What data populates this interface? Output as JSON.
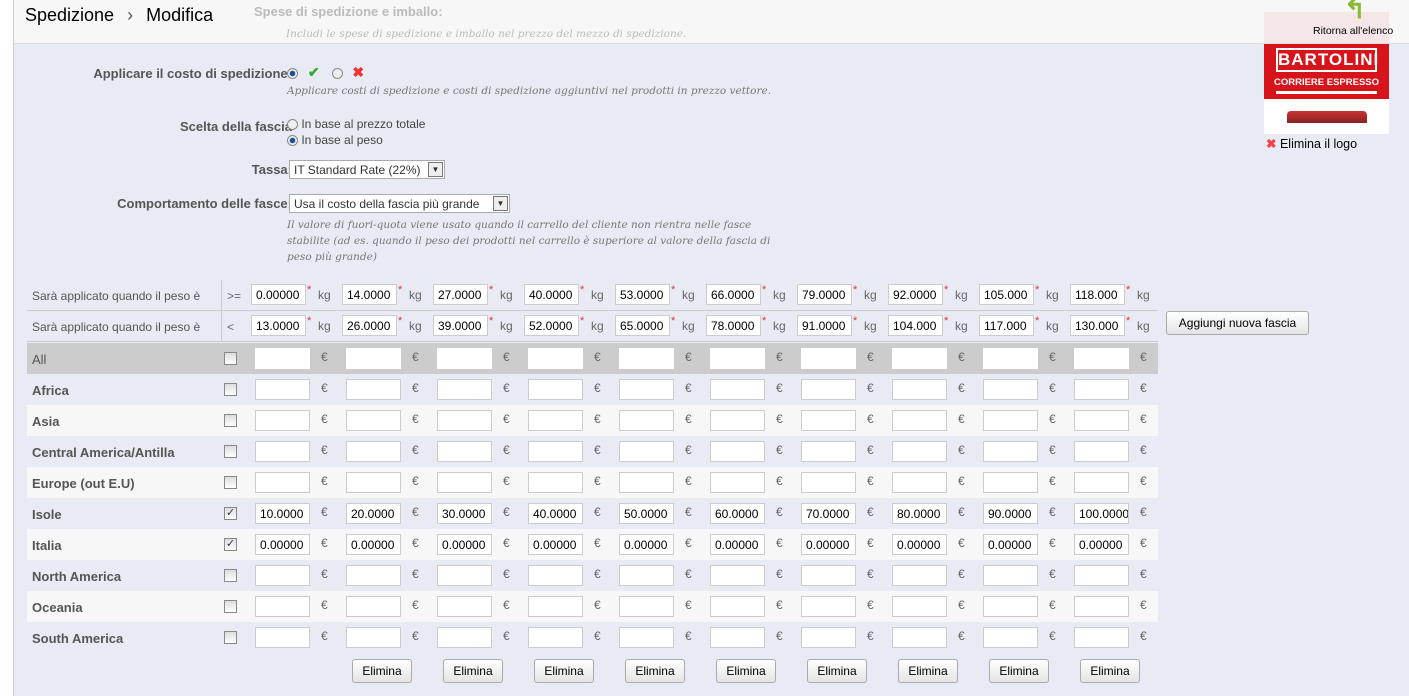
{
  "breadcrumb": {
    "section": "Spedizione",
    "separator": "›",
    "page": "Modifica"
  },
  "back_link": "Ritorna all'elenco",
  "logo": {
    "text": "BARTOLINI",
    "subtitle": "CORRIERE ESPRESSO",
    "delete_label": "Elimina il logo",
    "brand_color": "#d7141a"
  },
  "hidden_field": {
    "label": "Spese di spedizione e imballo:",
    "hint": "Includi le spese di spedizione e imballo nel prezzo del mezzo di spedizione."
  },
  "apply_cost": {
    "label": "Applicare il costo di spedizione:",
    "value": "yes",
    "hint": "Applicare costi di spedizione e costi di spedizione aggiuntivi nei prodotti in prezzo vettore."
  },
  "range_choice": {
    "label": "Scelta della fascia",
    "options": [
      "In base al prezzo totale",
      "In base al peso"
    ],
    "selected": 1
  },
  "tax": {
    "label": "Tassa:",
    "value": "IT Standard Rate (22%)"
  },
  "behavior": {
    "label": "Comportamento delle fasce:",
    "value": "Usa il costo della fascia più grande",
    "hint": "Il valore di fuori-quota viene usato quando il carrello del cliente non rientra nelle fasce stabilite (ad es. quando il peso dei prodotti nel carrello è superiore al valore della fascia di peso più grande)"
  },
  "ranges": {
    "from_label": "Sarà applicato quando il peso è",
    "from_op": ">=",
    "to_label": "Sarà applicato quando il peso è",
    "to_op": "<",
    "unit": "kg",
    "currency": "€",
    "from": [
      "0.00000",
      "14.0000",
      "27.0000",
      "40.0000",
      "53.0000",
      "66.0000",
      "79.0000",
      "92.0000",
      "105.000",
      "118.000"
    ],
    "to": [
      "13.0000",
      "26.0000",
      "39.0000",
      "52.0000",
      "65.0000",
      "78.0000",
      "91.0000",
      "104.000",
      "117.000",
      "130.000"
    ],
    "add_button": "Aggiungi nuova fascia",
    "delete_button": "Elimina"
  },
  "zones": [
    {
      "name": "All",
      "checked": false,
      "prices": [
        "",
        "",
        "",
        "",
        "",
        "",
        "",
        "",
        "",
        ""
      ]
    },
    {
      "name": "Africa",
      "checked": false,
      "prices": [
        "",
        "",
        "",
        "",
        "",
        "",
        "",
        "",
        "",
        ""
      ]
    },
    {
      "name": "Asia",
      "checked": false,
      "prices": [
        "",
        "",
        "",
        "",
        "",
        "",
        "",
        "",
        "",
        ""
      ]
    },
    {
      "name": "Central America/Antilla",
      "checked": false,
      "prices": [
        "",
        "",
        "",
        "",
        "",
        "",
        "",
        "",
        "",
        ""
      ]
    },
    {
      "name": "Europe (out E.U)",
      "checked": false,
      "prices": [
        "",
        "",
        "",
        "",
        "",
        "",
        "",
        "",
        "",
        ""
      ]
    },
    {
      "name": "Isole",
      "checked": true,
      "prices": [
        "10.0000",
        "20.0000",
        "30.0000",
        "40.0000",
        "50.0000",
        "60.0000",
        "70.0000",
        "80.0000",
        "90.0000",
        "100.0000"
      ]
    },
    {
      "name": "Italia",
      "checked": true,
      "prices": [
        "0.00000",
        "0.00000",
        "0.00000",
        "0.00000",
        "0.00000",
        "0.00000",
        "0.00000",
        "0.00000",
        "0.00000",
        "0.00000"
      ]
    },
    {
      "name": "North America",
      "checked": false,
      "prices": [
        "",
        "",
        "",
        "",
        "",
        "",
        "",
        "",
        "",
        ""
      ]
    },
    {
      "name": "Oceania",
      "checked": false,
      "prices": [
        "",
        "",
        "",
        "",
        "",
        "",
        "",
        "",
        "",
        ""
      ]
    },
    {
      "name": "South America",
      "checked": false,
      "prices": [
        "",
        "",
        "",
        "",
        "",
        "",
        "",
        "",
        "",
        ""
      ]
    }
  ]
}
